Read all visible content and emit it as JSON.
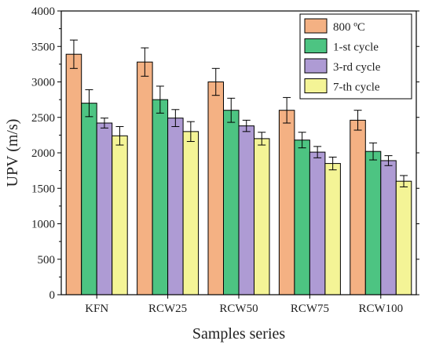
{
  "chart_data": {
    "type": "bar",
    "title": "",
    "xlabel": "Samples series",
    "ylabel": "UPV (m/s)",
    "ylim": [
      0,
      4000
    ],
    "yticks": [
      0,
      500,
      1000,
      1500,
      2000,
      2500,
      3000,
      3500,
      4000
    ],
    "categories": [
      "KFN",
      "RCW25",
      "RCW50",
      "RCW75",
      "RCW100"
    ],
    "legend_position": "top-right",
    "grid": false,
    "series": [
      {
        "name": "800 ºC",
        "color": "#F4B183",
        "values": [
          3390,
          3280,
          3000,
          2600,
          2460
        ],
        "errors": [
          200,
          200,
          190,
          180,
          140
        ]
      },
      {
        "name": "1-st cycle",
        "color": "#4DC482",
        "values": [
          2700,
          2750,
          2600,
          2180,
          2020
        ],
        "errors": [
          190,
          190,
          170,
          110,
          120
        ]
      },
      {
        "name": "3-rd cycle",
        "color": "#AE9BD4",
        "values": [
          2420,
          2490,
          2380,
          2010,
          1890
        ],
        "errors": [
          70,
          120,
          80,
          80,
          70
        ]
      },
      {
        "name": "7-th cycle",
        "color": "#F4F496",
        "values": [
          2240,
          2300,
          2200,
          1850,
          1600
        ],
        "errors": [
          130,
          140,
          90,
          90,
          80
        ]
      }
    ]
  }
}
